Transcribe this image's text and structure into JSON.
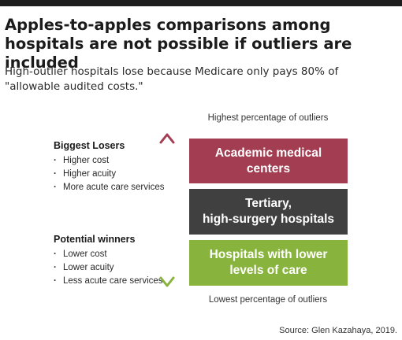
{
  "header": {
    "title": "Apples-to-apples comparisons among hospitals are not possible if outliers are included",
    "subtitle": "High-outlier hospitals lose because Medicare only pays 80% of \"allowable audited costs.\""
  },
  "scale": {
    "top_label": "Highest percentage of outliers",
    "bottom_label": "Lowest percentage of outliers"
  },
  "groups": {
    "losers": {
      "heading": "Biggest Losers",
      "items": [
        "Higher cost",
        "Higher acuity",
        "More acute care services"
      ]
    },
    "winners": {
      "heading": "Potential winners",
      "items": [
        "Lower cost",
        "Lower acuity",
        "Less acute care services"
      ]
    }
  },
  "boxes": {
    "academic": "Academic medical centers",
    "tertiary": "Tertiary,\nhigh-surgery hospitals",
    "lower": "Hospitals with lower\nlevels of care"
  },
  "colors": {
    "academic": "#a33e52",
    "tertiary": "#404040",
    "lower": "#88b33d",
    "arrow_top": "#a33e52",
    "arrow_bottom": "#88b33d"
  },
  "icons": {
    "arrow": "double-headed-vertical-arrow-icon"
  },
  "source": "Source: Glen Kazahaya, 2019."
}
